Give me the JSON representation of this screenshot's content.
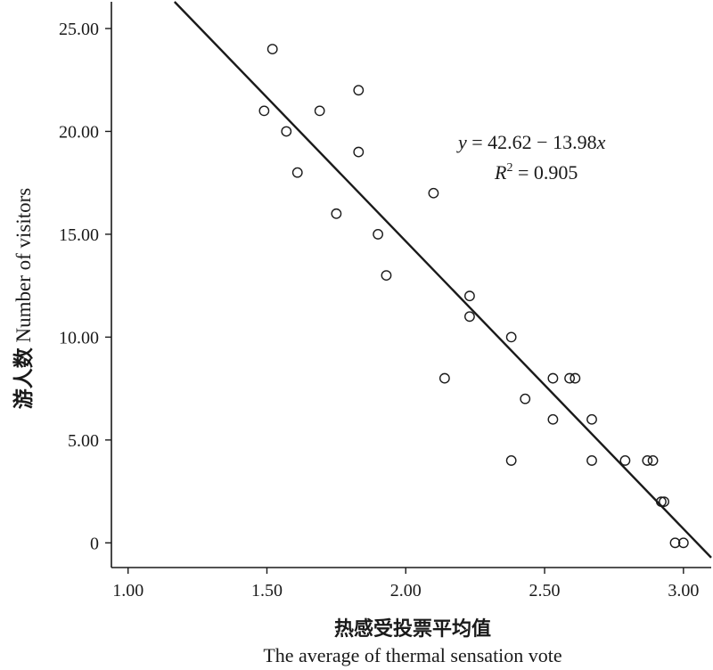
{
  "chart_data": {
    "type": "scatter",
    "title": "",
    "xlabel_cn": "热感受投票平均值",
    "xlabel_en": "The average of thermal sensation vote",
    "ylabel_cn": "游人数",
    "ylabel_en": "Number of visitors",
    "xlim": [
      0.94,
      3.1
    ],
    "ylim": [
      -1.2,
      26.3
    ],
    "x_ticks": [
      1.0,
      1.5,
      2.0,
      2.5,
      3.0
    ],
    "x_tick_labels": [
      "1.00",
      "1.50",
      "2.00",
      "2.50",
      "3.00"
    ],
    "y_ticks": [
      0,
      5,
      10,
      15,
      20,
      25
    ],
    "y_tick_labels": [
      "0",
      "5.00",
      "10.00",
      "15.00",
      "20.00",
      "25.00"
    ],
    "grid": false,
    "series": [
      {
        "marker": "open-circle",
        "points": [
          {
            "x": 1.52,
            "y": 24
          },
          {
            "x": 1.49,
            "y": 21
          },
          {
            "x": 1.69,
            "y": 21
          },
          {
            "x": 1.83,
            "y": 22
          },
          {
            "x": 1.57,
            "y": 20
          },
          {
            "x": 1.61,
            "y": 18
          },
          {
            "x": 1.83,
            "y": 19
          },
          {
            "x": 2.1,
            "y": 17
          },
          {
            "x": 1.75,
            "y": 16
          },
          {
            "x": 1.9,
            "y": 15
          },
          {
            "x": 1.93,
            "y": 13
          },
          {
            "x": 2.23,
            "y": 12
          },
          {
            "x": 2.23,
            "y": 11
          },
          {
            "x": 2.38,
            "y": 10
          },
          {
            "x": 2.14,
            "y": 8
          },
          {
            "x": 2.53,
            "y": 8
          },
          {
            "x": 2.59,
            "y": 8
          },
          {
            "x": 2.61,
            "y": 8
          },
          {
            "x": 2.43,
            "y": 7
          },
          {
            "x": 2.53,
            "y": 6
          },
          {
            "x": 2.67,
            "y": 6
          },
          {
            "x": 2.38,
            "y": 4
          },
          {
            "x": 2.67,
            "y": 4
          },
          {
            "x": 2.79,
            "y": 4
          },
          {
            "x": 2.87,
            "y": 4
          },
          {
            "x": 2.89,
            "y": 4
          },
          {
            "x": 2.92,
            "y": 2
          },
          {
            "x": 2.93,
            "y": 2
          },
          {
            "x": 2.97,
            "y": 0
          },
          {
            "x": 3.0,
            "y": 0
          }
        ]
      }
    ],
    "fit_line": {
      "intercept": 42.62,
      "slope": -13.98
    },
    "annotation": {
      "eq_prefix": "y",
      "eq_body": " = 42.62 − 13.98",
      "eq_var": "x",
      "r2_label": "R",
      "r2_exp": "2",
      "r2_value": " = 0.905"
    },
    "colors": {
      "ink": "#1a1a1a",
      "background": "#ffffff"
    }
  }
}
